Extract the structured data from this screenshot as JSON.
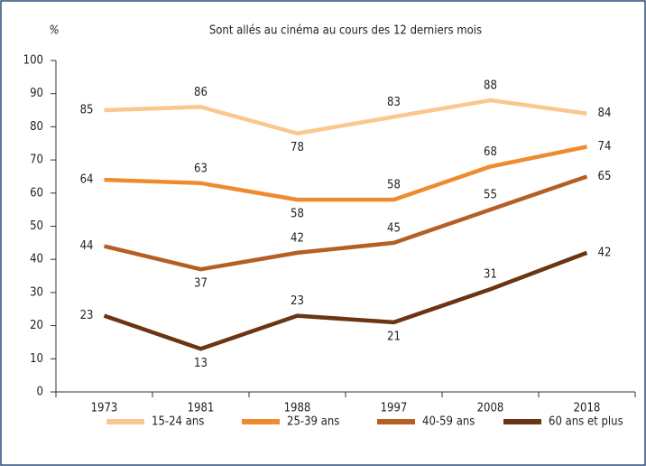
{
  "chart_data": {
    "type": "line",
    "title": "Sont allés au cinéma au cours des 12 derniers mois",
    "y_label": "%",
    "categories": [
      "1973",
      "1981",
      "1988",
      "1997",
      "2008",
      "2018"
    ],
    "series": [
      {
        "name": "15-24 ans",
        "color": "#f9c890",
        "values": [
          85,
          86,
          78,
          83,
          88,
          84
        ]
      },
      {
        "name": "25-39 ans",
        "color": "#f08a2f",
        "values": [
          64,
          63,
          58,
          58,
          68,
          74
        ]
      },
      {
        "name": "40-59 ans",
        "color": "#b55f25",
        "values": [
          44,
          37,
          42,
          45,
          55,
          65
        ]
      },
      {
        "name": "60 ans et plus",
        "color": "#6b3412",
        "values": [
          23,
          13,
          23,
          21,
          31,
          42
        ]
      }
    ],
    "ylim": [
      0,
      100
    ],
    "yticks": [
      0,
      10,
      20,
      30,
      40,
      50,
      60,
      70,
      80,
      90,
      100
    ],
    "grid": false,
    "legend": "bottom"
  }
}
